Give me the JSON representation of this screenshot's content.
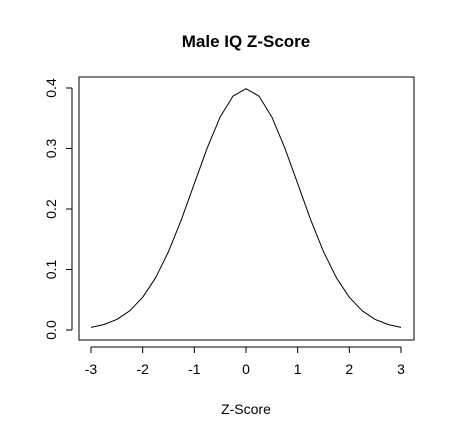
{
  "chart_data": {
    "type": "line",
    "title": "Male IQ Z-Score",
    "xlabel": "Z-Score",
    "ylabel": "",
    "xlim": [
      -3,
      3
    ],
    "ylim": [
      0,
      0.4
    ],
    "x_ticks": [
      -3,
      -2,
      -1,
      0,
      1,
      2,
      3
    ],
    "y_ticks": [
      0.0,
      0.1,
      0.2,
      0.3,
      0.4
    ],
    "x_tick_labels": [
      "-3",
      "-2",
      "-1",
      "0",
      "1",
      "2",
      "3"
    ],
    "y_tick_labels": [
      "0.0",
      "0.1",
      "0.2",
      "0.3",
      "0.4"
    ],
    "grid": false,
    "series": [
      {
        "color": "#000000",
        "x": [
          -3.0,
          -2.75,
          -2.5,
          -2.25,
          -2.0,
          -1.75,
          -1.5,
          -1.25,
          -1.0,
          -0.75,
          -0.5,
          -0.25,
          0.0,
          0.25,
          0.5,
          0.75,
          1.0,
          1.25,
          1.5,
          1.75,
          2.0,
          2.25,
          2.5,
          2.75,
          3.0
        ],
        "y": [
          0.0044,
          0.0091,
          0.0175,
          0.0317,
          0.054,
          0.0863,
          0.1295,
          0.1826,
          0.242,
          0.3011,
          0.3521,
          0.3867,
          0.3989,
          0.3867,
          0.3521,
          0.3011,
          0.242,
          0.1826,
          0.1295,
          0.0863,
          0.054,
          0.0317,
          0.0175,
          0.0091,
          0.0044
        ]
      }
    ]
  }
}
